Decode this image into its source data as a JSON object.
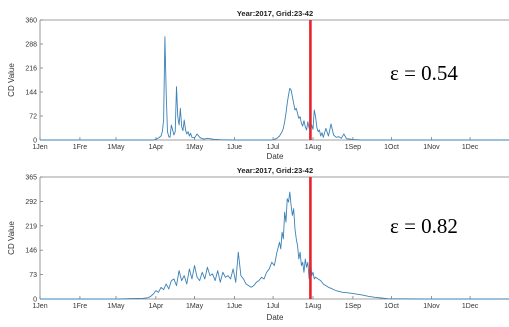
{
  "colors": {
    "series": "#3b82b8",
    "marker": "#e8232a",
    "axis": "#7f7f7f",
    "text": "#333333"
  },
  "chart_data": [
    {
      "type": "line",
      "title": "Year:2017, Grid:23-42",
      "xlabel": "Date",
      "ylabel": "CD Value",
      "ylim": [
        0,
        360
      ],
      "yticks": [
        0,
        72,
        144,
        216,
        288,
        360
      ],
      "xlim": [
        0,
        365
      ],
      "xtick_positions": [
        0,
        31,
        59,
        90,
        120,
        151,
        181,
        212,
        243,
        273,
        304,
        334
      ],
      "xtick_labels": [
        "1Jen",
        "1Fre",
        "1May",
        "1Apr",
        "1May",
        "1Jue",
        "1Jul",
        "1Aug",
        "1Sep",
        "1Oct",
        "1Nov",
        "1Dec"
      ],
      "grid": false,
      "annotation": "ε = 0.54",
      "marker_day": 210,
      "series": [
        {
          "x": [
            0,
            60,
            88,
            90,
            92,
            94,
            95,
            96,
            97,
            98,
            99,
            100,
            101,
            102,
            103,
            104,
            105,
            106,
            107,
            108,
            109,
            110,
            111,
            112,
            113,
            114,
            115,
            116,
            117,
            118,
            120,
            122,
            124,
            126,
            128,
            130,
            135,
            140,
            150,
            160,
            170,
            180,
            182,
            184,
            186,
            188,
            189,
            190,
            191,
            192,
            193,
            194,
            195,
            196,
            197,
            198,
            199,
            200,
            201,
            202,
            203,
            204,
            205,
            206,
            207,
            208,
            209,
            210,
            211,
            212,
            213,
            214,
            215,
            216,
            217,
            218,
            219,
            220,
            222,
            224,
            226,
            228,
            230,
            232,
            234,
            236,
            238,
            240,
            242,
            244,
            246,
            250,
            260,
            280,
            300,
            320,
            340,
            365
          ],
          "y": [
            0,
            0,
            0,
            2,
            6,
            12,
            25,
            60,
            310,
            140,
            25,
            10,
            8,
            45,
            30,
            15,
            25,
            160,
            70,
            45,
            95,
            40,
            28,
            60,
            30,
            18,
            25,
            12,
            20,
            8,
            6,
            18,
            8,
            4,
            3,
            5,
            2,
            1,
            0,
            0,
            0,
            0,
            2,
            5,
            12,
            25,
            35,
            55,
            80,
            110,
            135,
            155,
            150,
            130,
            110,
            90,
            95,
            80,
            65,
            70,
            50,
            42,
            58,
            40,
            30,
            55,
            35,
            28,
            45,
            32,
            90,
            70,
            38,
            25,
            30,
            12,
            22,
            8,
            35,
            12,
            48,
            15,
            8,
            10,
            5,
            18,
            4,
            3,
            2,
            1,
            1,
            0,
            0,
            0,
            0,
            0,
            0,
            0
          ]
        }
      ]
    },
    {
      "type": "line",
      "title": "Year:2017, Grid:23-42",
      "xlabel": "Date",
      "ylabel": "CD Value",
      "ylim": [
        0,
        365
      ],
      "yticks": [
        0,
        73,
        146,
        219,
        292,
        365
      ],
      "xlim": [
        0,
        365
      ],
      "xtick_positions": [
        0,
        31,
        59,
        90,
        120,
        151,
        181,
        212,
        243,
        273,
        304,
        334
      ],
      "xtick_labels": [
        "1Jen",
        "1Fre",
        "1May",
        "1Apr",
        "1May",
        "1Jue",
        "1Jul",
        "1Aug",
        "1Sep",
        "1Oct",
        "1Nov",
        "1Dec"
      ],
      "grid": false,
      "annotation": "ε = 0.82",
      "marker_day": 210,
      "series": [
        {
          "x": [
            0,
            60,
            80,
            84,
            86,
            88,
            90,
            92,
            94,
            96,
            98,
            100,
            102,
            104,
            106,
            108,
            110,
            112,
            114,
            116,
            118,
            120,
            122,
            124,
            126,
            128,
            130,
            132,
            134,
            136,
            138,
            140,
            142,
            144,
            146,
            148,
            150,
            152,
            154,
            156,
            158,
            160,
            162,
            164,
            166,
            168,
            170,
            172,
            174,
            176,
            178,
            180,
            182,
            184,
            186,
            187,
            188,
            189,
            190,
            191,
            192,
            193,
            194,
            195,
            196,
            197,
            198,
            199,
            200,
            201,
            202,
            203,
            204,
            205,
            206,
            207,
            208,
            209,
            210,
            211,
            212,
            213,
            214,
            216,
            218,
            220,
            222,
            224,
            226,
            228,
            230,
            235,
            240,
            245,
            250,
            255,
            260,
            265,
            270,
            300,
            330,
            365
          ],
          "y": [
            0,
            0,
            2,
            4,
            8,
            15,
            25,
            20,
            35,
            28,
            45,
            30,
            55,
            60,
            40,
            85,
            55,
            70,
            45,
            90,
            60,
            100,
            65,
            55,
            80,
            60,
            95,
            70,
            75,
            55,
            85,
            50,
            80,
            65,
            70,
            60,
            90,
            50,
            140,
            70,
            60,
            45,
            40,
            35,
            40,
            50,
            55,
            65,
            60,
            80,
            90,
            110,
            100,
            140,
            170,
            150,
            200,
            180,
            260,
            230,
            300,
            290,
            320,
            280,
            250,
            270,
            210,
            180,
            160,
            120,
            140,
            100,
            110,
            80,
            120,
            95,
            110,
            60,
            128,
            70,
            80,
            60,
            65,
            60,
            55,
            45,
            40,
            35,
            32,
            28,
            25,
            20,
            18,
            15,
            12,
            8,
            5,
            3,
            1,
            0,
            0,
            0
          ]
        }
      ]
    }
  ]
}
